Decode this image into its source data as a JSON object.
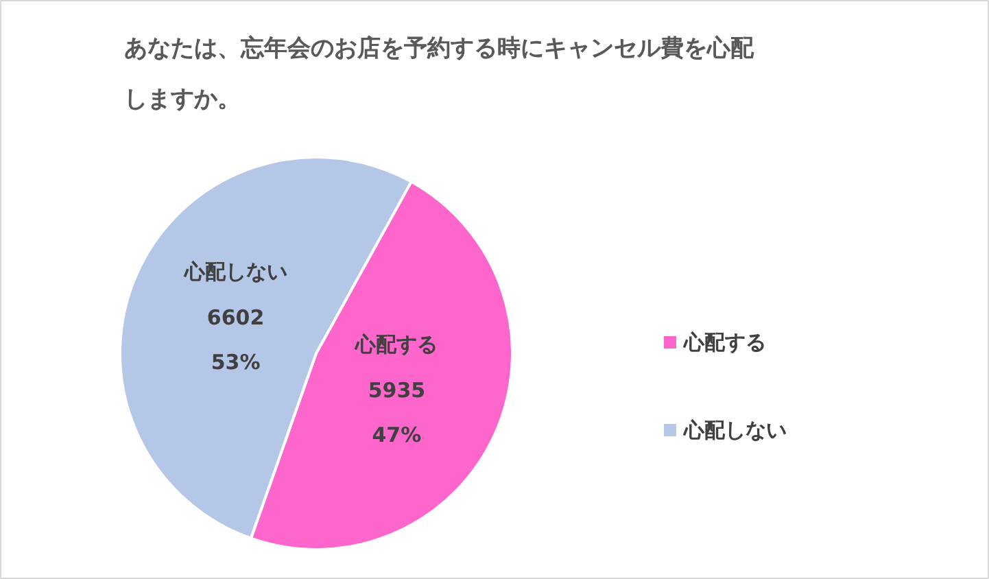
{
  "chart_data": {
    "type": "pie",
    "title": "あなたは、忘年会のお店を予約する時にキャンセル費を心配しますか。",
    "categories": [
      "心配する",
      "心配しない"
    ],
    "values": [
      5935,
      6602
    ],
    "colors": [
      "#ff66cc",
      "#b4c7e7"
    ],
    "value_labels": [
      "心配する\n5935\n47%",
      "心配しない\n6602\n53%"
    ],
    "legend": "right"
  }
}
